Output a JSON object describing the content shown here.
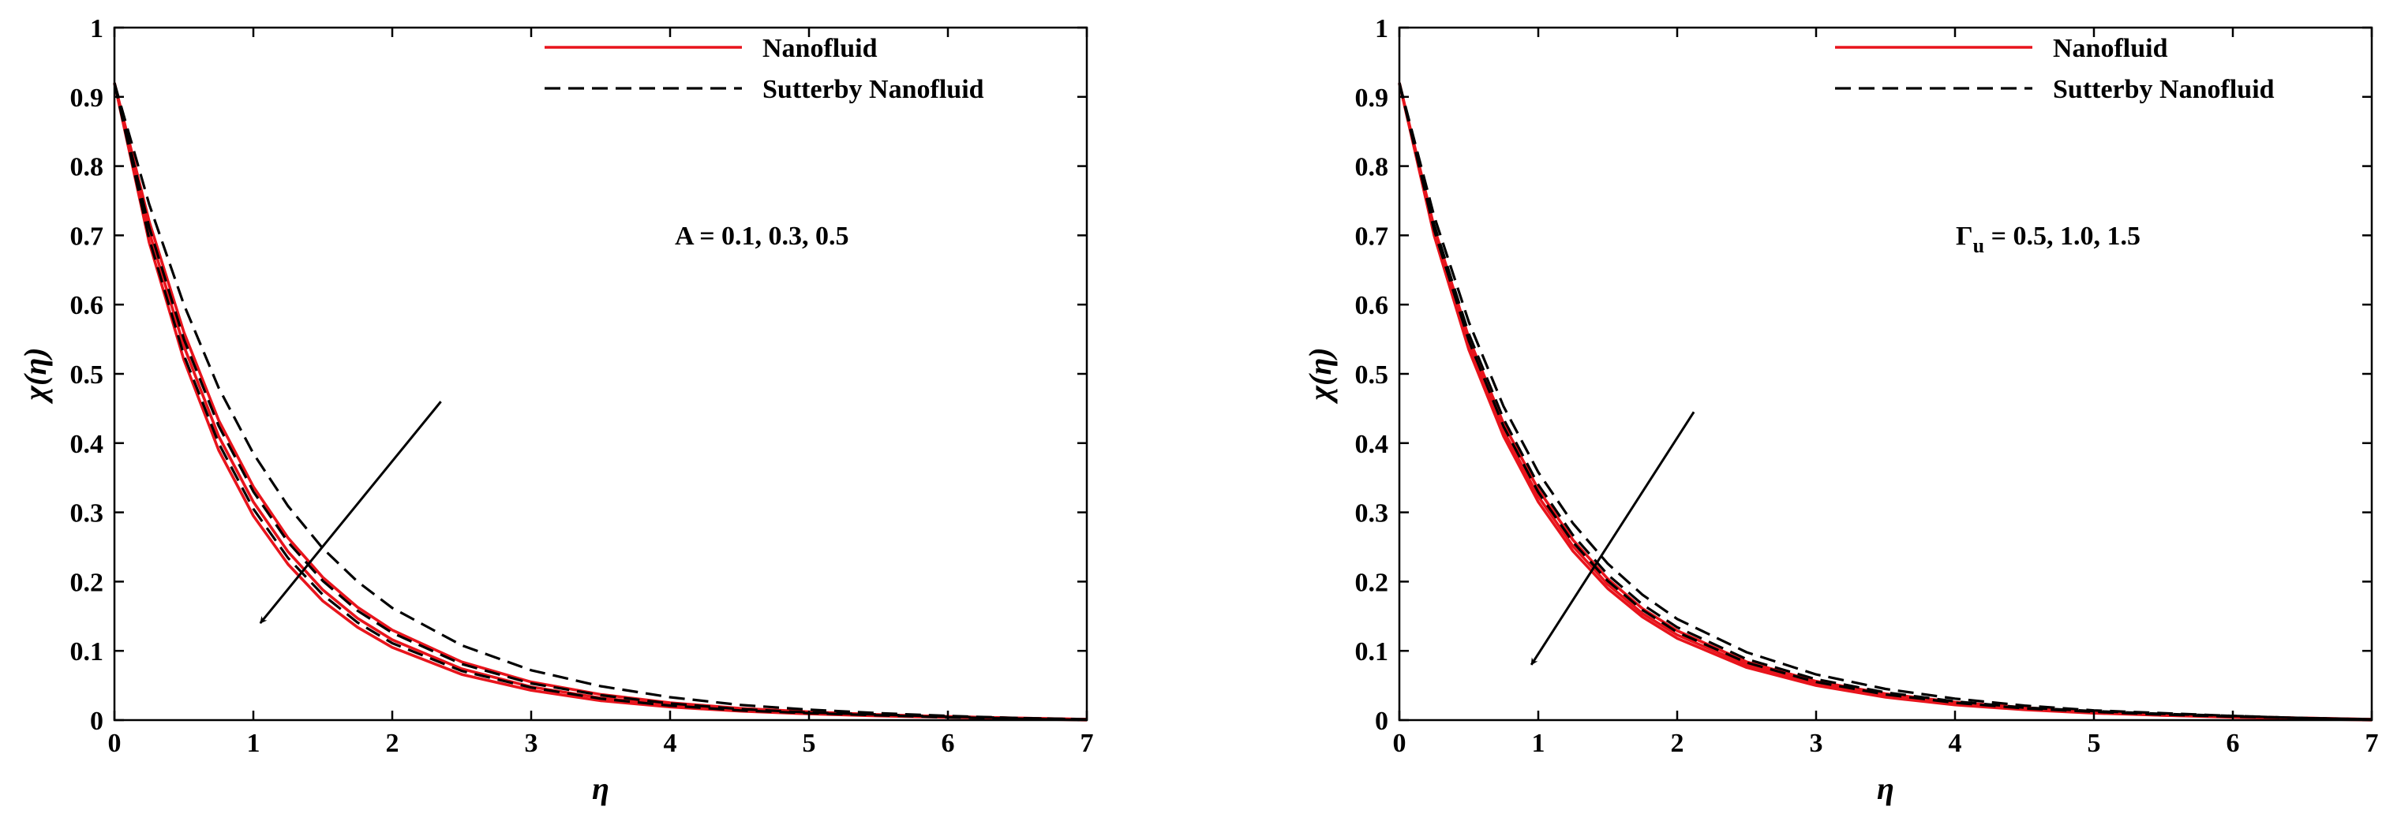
{
  "chart_data": [
    {
      "type": "line",
      "panel": "left",
      "xlabel": "η",
      "ylabel": "χ(η)",
      "xlim": [
        0,
        7
      ],
      "ylim": [
        0,
        1
      ],
      "xticks": [
        0,
        1,
        2,
        3,
        4,
        5,
        6,
        7
      ],
      "yticks": [
        0,
        0.1,
        0.2,
        0.3,
        0.4,
        0.5,
        0.6,
        0.7,
        0.8,
        0.9,
        1
      ],
      "grid": false,
      "legend": {
        "position": "top-right",
        "entries": [
          {
            "label": "Nanofluid",
            "color": "#e8141c",
            "dash": "solid"
          },
          {
            "label": "Sutterby Nanofluid",
            "color": "#000000",
            "dash": "dashed"
          }
        ]
      },
      "annotation": {
        "prefix": "A",
        "subscript": "",
        "text": " = 0.1, 0.3, 0.5"
      },
      "arrow": {
        "from": [
          2.35,
          0.46
        ],
        "to": [
          1.05,
          0.14
        ]
      },
      "x": [
        0,
        0.25,
        0.5,
        0.75,
        1,
        1.25,
        1.5,
        1.75,
        2,
        2.5,
        3,
        3.5,
        4,
        4.5,
        5,
        5.5,
        6,
        6.5,
        7
      ],
      "series": [
        {
          "name": "Nanofluid, A = 0.1",
          "color": "#e8141c",
          "dash": "solid",
          "values": [
            0.92,
            0.69,
            0.52,
            0.39,
            0.295,
            0.225,
            0.172,
            0.134,
            0.105,
            0.066,
            0.043,
            0.028,
            0.019,
            0.013,
            0.009,
            0.006,
            0.004,
            0.002,
            0.0
          ]
        },
        {
          "name": "Nanofluid, A = 0.3",
          "color": "#e8141c",
          "dash": "solid",
          "values": [
            0.92,
            0.705,
            0.54,
            0.41,
            0.315,
            0.243,
            0.188,
            0.147,
            0.116,
            0.074,
            0.048,
            0.032,
            0.022,
            0.015,
            0.01,
            0.007,
            0.005,
            0.003,
            0.001
          ]
        },
        {
          "name": "Nanofluid, A = 0.5",
          "color": "#e8141c",
          "dash": "solid",
          "values": [
            0.92,
            0.72,
            0.56,
            0.433,
            0.337,
            0.263,
            0.206,
            0.163,
            0.13,
            0.084,
            0.055,
            0.037,
            0.025,
            0.017,
            0.012,
            0.008,
            0.005,
            0.003,
            0.001
          ]
        },
        {
          "name": "Sutterby Nanofluid, A = 0.1",
          "color": "#000000",
          "dash": "dashed",
          "values": [
            0.92,
            0.695,
            0.527,
            0.4,
            0.305,
            0.234,
            0.181,
            0.141,
            0.111,
            0.071,
            0.047,
            0.031,
            0.021,
            0.014,
            0.01,
            0.007,
            0.004,
            0.002,
            0.0
          ]
        },
        {
          "name": "Sutterby Nanofluid, A = 0.3",
          "color": "#000000",
          "dash": "dashed",
          "values": [
            0.92,
            0.712,
            0.55,
            0.425,
            0.33,
            0.257,
            0.201,
            0.158,
            0.126,
            0.081,
            0.053,
            0.036,
            0.024,
            0.016,
            0.011,
            0.008,
            0.005,
            0.003,
            0.001
          ]
        },
        {
          "name": "Sutterby Nanofluid, A = 0.5",
          "color": "#000000",
          "dash": "dashed",
          "values": [
            0.92,
            0.745,
            0.6,
            0.48,
            0.385,
            0.309,
            0.248,
            0.2,
            0.162,
            0.108,
            0.072,
            0.049,
            0.033,
            0.022,
            0.015,
            0.01,
            0.006,
            0.003,
            0.001
          ]
        }
      ]
    },
    {
      "type": "line",
      "panel": "right",
      "xlabel": "η",
      "ylabel": "χ(η)",
      "xlim": [
        0,
        7
      ],
      "ylim": [
        0,
        1
      ],
      "xticks": [
        0,
        1,
        2,
        3,
        4,
        5,
        6,
        7
      ],
      "yticks": [
        0,
        0.1,
        0.2,
        0.3,
        0.4,
        0.5,
        0.6,
        0.7,
        0.8,
        0.9,
        1
      ],
      "grid": false,
      "legend": {
        "position": "top-right",
        "entries": [
          {
            "label": "Nanofluid",
            "color": "#e8141c",
            "dash": "solid"
          },
          {
            "label": "Sutterby Nanofluid",
            "color": "#000000",
            "dash": "dashed"
          }
        ]
      },
      "annotation": {
        "prefix": "Γ",
        "subscript": "u",
        "text": " = 0.5, 1.0, 1.5"
      },
      "arrow": {
        "from": [
          2.12,
          0.445
        ],
        "to": [
          0.95,
          0.08
        ]
      },
      "x": [
        0,
        0.25,
        0.5,
        0.75,
        1,
        1.25,
        1.5,
        1.75,
        2,
        2.5,
        3,
        3.5,
        4,
        4.5,
        5,
        5.5,
        6,
        6.5,
        7
      ],
      "series": [
        {
          "name": "Nanofluid, Γu = 0.5",
          "color": "#e8141c",
          "dash": "solid",
          "values": [
            0.92,
            0.7,
            0.535,
            0.41,
            0.315,
            0.244,
            0.19,
            0.149,
            0.118,
            0.076,
            0.05,
            0.033,
            0.022,
            0.015,
            0.01,
            0.007,
            0.004,
            0.002,
            0.0
          ]
        },
        {
          "name": "Nanofluid, Γu = 1.0",
          "color": "#e8141c",
          "dash": "solid",
          "values": [
            0.92,
            0.705,
            0.543,
            0.418,
            0.323,
            0.251,
            0.196,
            0.154,
            0.123,
            0.08,
            0.053,
            0.035,
            0.024,
            0.016,
            0.011,
            0.007,
            0.005,
            0.003,
            0.001
          ]
        },
        {
          "name": "Nanofluid, Γu = 1.5",
          "color": "#e8141c",
          "dash": "solid",
          "values": [
            0.92,
            0.712,
            0.552,
            0.428,
            0.333,
            0.26,
            0.204,
            0.161,
            0.129,
            0.084,
            0.056,
            0.038,
            0.026,
            0.018,
            0.012,
            0.008,
            0.005,
            0.003,
            0.001
          ]
        },
        {
          "name": "Sutterby Nanofluid, Γu = 0.5",
          "color": "#000000",
          "dash": "dashed",
          "values": [
            0.92,
            0.708,
            0.548,
            0.424,
            0.329,
            0.257,
            0.201,
            0.159,
            0.127,
            0.083,
            0.055,
            0.037,
            0.025,
            0.017,
            0.012,
            0.008,
            0.005,
            0.003,
            0.001
          ]
        },
        {
          "name": "Sutterby Nanofluid, Γu = 1.0",
          "color": "#000000",
          "dash": "dashed",
          "values": [
            0.92,
            0.716,
            0.558,
            0.435,
            0.34,
            0.267,
            0.21,
            0.167,
            0.134,
            0.088,
            0.059,
            0.04,
            0.027,
            0.018,
            0.013,
            0.009,
            0.006,
            0.003,
            0.001
          ]
        },
        {
          "name": "Sutterby Nanofluid, Γu = 1.5",
          "color": "#000000",
          "dash": "dashed",
          "values": [
            0.92,
            0.728,
            0.575,
            0.453,
            0.358,
            0.284,
            0.226,
            0.181,
            0.146,
            0.098,
            0.066,
            0.045,
            0.031,
            0.021,
            0.014,
            0.01,
            0.006,
            0.003,
            0.001
          ]
        }
      ]
    }
  ]
}
